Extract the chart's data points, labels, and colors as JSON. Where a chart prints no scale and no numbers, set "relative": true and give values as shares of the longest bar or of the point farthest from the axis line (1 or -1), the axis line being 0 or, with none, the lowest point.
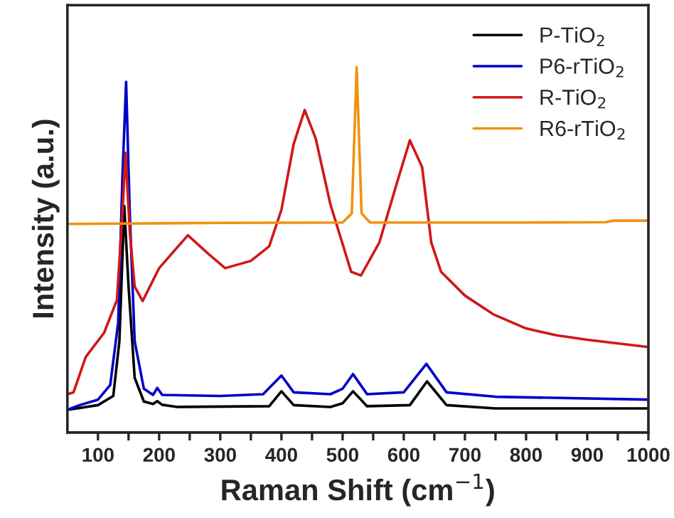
{
  "chart_data": {
    "type": "line",
    "relative": true,
    "xlabel": "Raman Shift (cm$^{−1}$)",
    "ylabel": "Intensity (a.u.)",
    "xlim": [
      50,
      1000
    ],
    "xticks": [
      100,
      {
        "value": 150,
        "label": null
      },
      200,
      {
        "value": 250,
        "label": null
      },
      300,
      {
        "value": 350,
        "label": null
      },
      400,
      {
        "value": 450,
        "label": null
      },
      500,
      {
        "value": 550,
        "label": null
      },
      600,
      {
        "value": 650,
        "label": null
      },
      700,
      {
        "value": 750,
        "label": null
      },
      800,
      {
        "value": 850,
        "label": null
      },
      900,
      {
        "value": 950,
        "label": null
      },
      1000
    ],
    "legend": "top right",
    "grid": false,
    "line_style": "solid",
    "series": [
      {
        "name": "P-TiO$_{2}$",
        "color": "#000000",
        "x": [
          50,
          100,
          125,
          135,
          143,
          150,
          160,
          175,
          190,
          197,
          205,
          230,
          380,
          400,
          420,
          480,
          500,
          517,
          540,
          610,
          638,
          670,
          750,
          1000
        ],
        "values": [
          0.062,
          0.075,
          0.1,
          0.25,
          0.62,
          0.4,
          0.15,
          0.085,
          0.078,
          0.086,
          0.076,
          0.07,
          0.072,
          0.113,
          0.075,
          0.07,
          0.08,
          0.113,
          0.072,
          0.075,
          0.14,
          0.075,
          0.066,
          0.066
        ]
      },
      {
        "name": "P6-rTiO$_{2}$",
        "color": "#0000c8",
        "x": [
          50,
          70,
          100,
          120,
          133,
          140,
          146,
          152,
          160,
          175,
          190,
          197,
          205,
          300,
          370,
          400,
          420,
          480,
          500,
          517,
          540,
          600,
          637,
          670,
          750,
          1000
        ],
        "values": [
          0.062,
          0.075,
          0.09,
          0.13,
          0.3,
          0.7,
          0.96,
          0.6,
          0.25,
          0.12,
          0.103,
          0.122,
          0.103,
          0.1,
          0.105,
          0.156,
          0.11,
          0.105,
          0.12,
          0.16,
          0.105,
          0.11,
          0.188,
          0.11,
          0.098,
          0.09
        ]
      },
      {
        "name": "R-TiO$_{2}$",
        "color": "#d01818",
        "x": [
          50,
          60,
          80,
          110,
          131,
          140,
          145,
          152,
          160,
          173,
          200,
          247,
          280,
          308,
          350,
          380,
          400,
          420,
          438,
          456,
          480,
          514,
          530,
          560,
          590,
          610,
          630,
          645,
          661,
          700,
          746,
          800,
          850,
          900,
          1000
        ],
        "values": [
          0.105,
          0.11,
          0.207,
          0.273,
          0.363,
          0.6,
          0.766,
          0.55,
          0.4,
          0.36,
          0.45,
          0.54,
          0.49,
          0.45,
          0.47,
          0.51,
          0.61,
          0.79,
          0.883,
          0.805,
          0.625,
          0.44,
          0.43,
          0.52,
          0.69,
          0.8,
          0.727,
          0.52,
          0.44,
          0.375,
          0.324,
          0.285,
          0.266,
          0.254,
          0.234
        ]
      },
      {
        "name": "R6-rTiO$_{2}$",
        "color": "#f0920f",
        "x": [
          50,
          300,
          500,
          515,
          519,
          523,
          527,
          531,
          545,
          800,
          930,
          943,
          1000
        ],
        "values": [
          0.571,
          0.574,
          0.575,
          0.6,
          0.8,
          1.0,
          0.8,
          0.6,
          0.575,
          0.575,
          0.576,
          0.58,
          0.58
        ]
      }
    ]
  }
}
